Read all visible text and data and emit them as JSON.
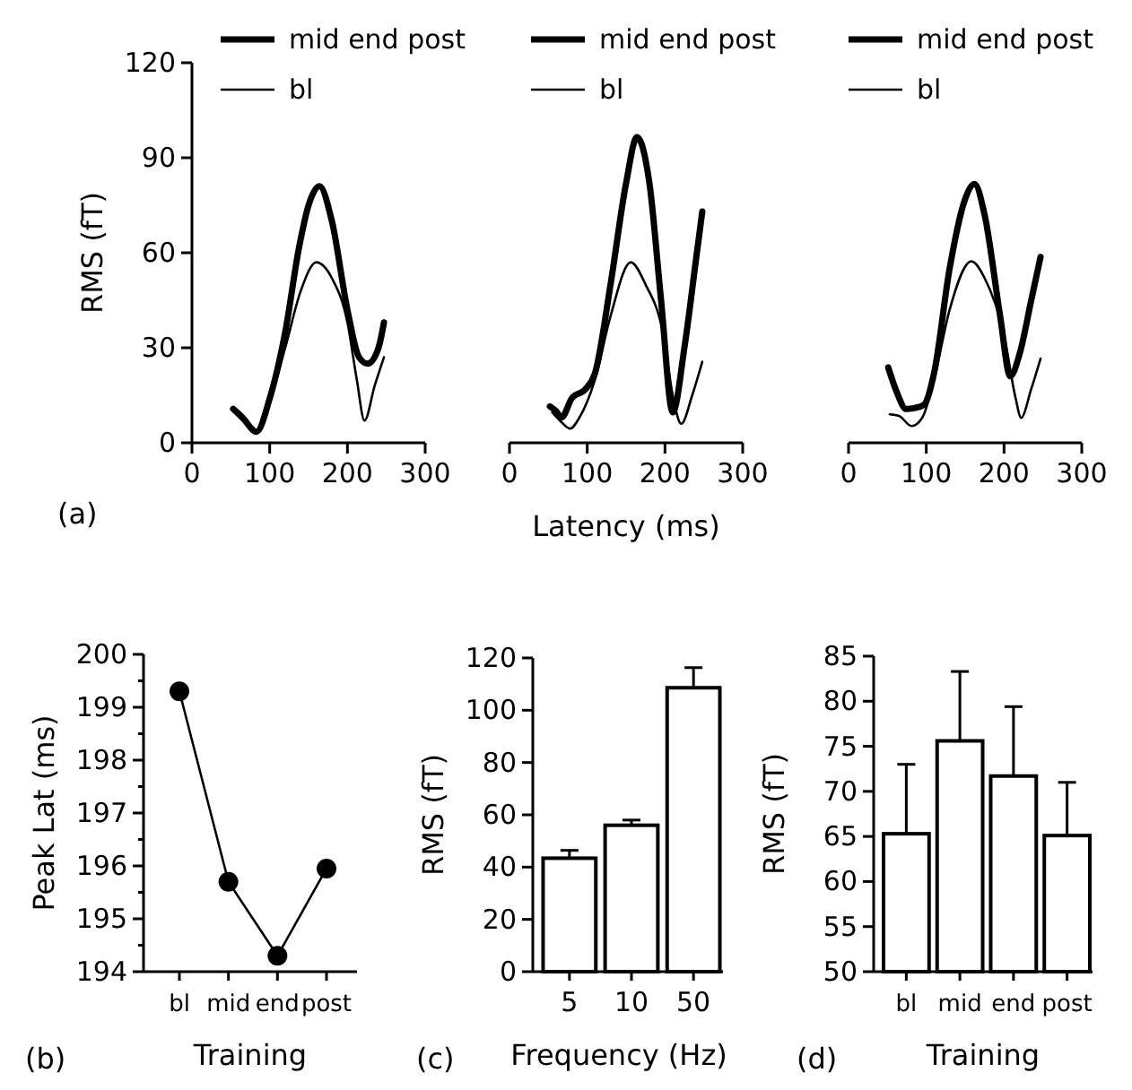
{
  "chart_data": [
    {
      "type": "line",
      "ylabel": "RMS (fT)",
      "annotations": [
        "(a)"
      ],
      "xlim": [
        0,
        300
      ],
      "xticks": [
        0,
        100,
        200,
        300
      ],
      "ylim": [
        0,
        120
      ],
      "yticks": [
        0,
        30,
        60,
        90,
        120
      ],
      "legend": "top",
      "series": [
        {
          "name": "mid end post",
          "color": "#000000",
          "x": [
            53,
            65,
            83,
            100,
            120,
            138,
            150,
            164,
            180,
            200,
            215,
            226,
            240,
            247
          ],
          "values": [
            10.7,
            8,
            3.5,
            14,
            35,
            62,
            75,
            81,
            70,
            42,
            27,
            25,
            30,
            38
          ]
        },
        {
          "name": "bl",
          "color": "#000000",
          "x": [
            53,
            65,
            83,
            100,
            120,
            140,
            160,
            180,
            200,
            212,
            222,
            235,
            247
          ],
          "values": [
            10,
            7,
            3,
            13,
            30,
            48,
            57,
            52,
            38,
            20,
            7,
            18,
            27
          ]
        }
      ]
    },
    {
      "type": "line",
      "xlabel": "Latency (ms)",
      "tick_labels": "x",
      "xlim": [
        0,
        300
      ],
      "xticks": [
        0,
        100,
        200,
        300
      ],
      "ylim": [
        0,
        120
      ],
      "legend": "top",
      "series": [
        {
          "name": "mid end post",
          "color": "#000000",
          "x": [
            52,
            60,
            67,
            80,
            98,
            110,
            130,
            150,
            164,
            180,
            195,
            210,
            225,
            240,
            248
          ],
          "values": [
            11.5,
            10,
            8,
            14,
            17,
            22,
            50,
            82,
            96.5,
            82,
            45,
            9.6,
            30,
            58,
            73
          ]
        },
        {
          "name": "bl",
          "color": "#000000",
          "x": [
            55,
            65,
            78,
            90,
            110,
            130,
            156,
            175,
            198,
            210,
            221,
            235,
            248
          ],
          "values": [
            9.6,
            7,
            4.5,
            8,
            20,
            40,
            57,
            50,
            34,
            15,
            6,
            15,
            25.6
          ]
        }
      ]
    },
    {
      "type": "line",
      "tick_labels": "x",
      "xlim": [
        0,
        300
      ],
      "xticks": [
        0,
        100,
        200,
        300
      ],
      "ylim": [
        0,
        120
      ],
      "legend": "top",
      "series": [
        {
          "name": "mid end post",
          "color": "#000000",
          "x": [
            51,
            62,
            74,
            85,
            97,
            110,
            130,
            150,
            162,
            175,
            195,
            208,
            220,
            235,
            247
          ],
          "values": [
            23.8,
            16,
            10.7,
            11,
            12,
            22,
            55,
            77,
            81.7,
            72,
            40,
            21,
            28,
            45,
            58.7
          ]
        },
        {
          "name": "bl",
          "color": "#000000",
          "x": [
            53,
            65,
            81,
            95,
            110,
            130,
            158,
            175,
            200,
            215,
            222,
            235,
            247
          ],
          "values": [
            9,
            8.5,
            5.3,
            8,
            20,
            42,
            57.3,
            52,
            34,
            14,
            7.9,
            17,
            26.6
          ]
        }
      ]
    },
    {
      "type": "line",
      "marker": "circle",
      "ylabel": "Peak Lat (ms)",
      "xlabel": "Training",
      "annotations": [
        "(b)"
      ],
      "categories": [
        "bl",
        "mid",
        "end",
        "post"
      ],
      "ylim": [
        194,
        200
      ],
      "yticks": [
        194,
        {
          "value": 194.5,
          "label": null
        },
        195,
        {
          "value": 195.5,
          "label": null
        },
        196,
        {
          "value": 196.5,
          "label": null
        },
        197,
        {
          "value": 197.5,
          "label": null
        },
        198,
        {
          "value": 198.5,
          "label": null
        },
        199,
        {
          "value": 199.5,
          "label": null
        },
        200
      ],
      "series": [
        {
          "color": "#000000",
          "values": [
            199.3,
            195.7,
            194.3,
            195.95
          ]
        }
      ]
    },
    {
      "type": "bar",
      "ylabel": "RMS (fT)",
      "xlabel": "Frequency (Hz)",
      "annotations": [
        "(c)"
      ],
      "categories": [
        "5",
        "10",
        "50"
      ],
      "ylim": [
        0,
        120
      ],
      "yticks": [
        0,
        20,
        40,
        60,
        80,
        100,
        120
      ],
      "color": "#ffffff",
      "values": [
        43.4,
        56,
        108.6
      ],
      "errors": [
        [
          43.4,
          46.4
        ],
        [
          56,
          58
        ],
        [
          108.6,
          116.3
        ]
      ]
    },
    {
      "type": "bar",
      "ylabel": "RMS (fT)",
      "xlabel": "Training",
      "annotations": [
        "(d)"
      ],
      "categories": [
        "bl",
        "mid",
        "end",
        "post"
      ],
      "ylim": [
        50,
        85
      ],
      "yticks": [
        50,
        55,
        60,
        65,
        70,
        75,
        80,
        85
      ],
      "color": "#ffffff",
      "values": [
        65.3,
        75.6,
        71.7,
        65.1
      ],
      "errors": [
        [
          65.3,
          73
        ],
        [
          75.6,
          83.3
        ],
        [
          71.7,
          79.4
        ],
        [
          65.1,
          71
        ]
      ]
    }
  ]
}
